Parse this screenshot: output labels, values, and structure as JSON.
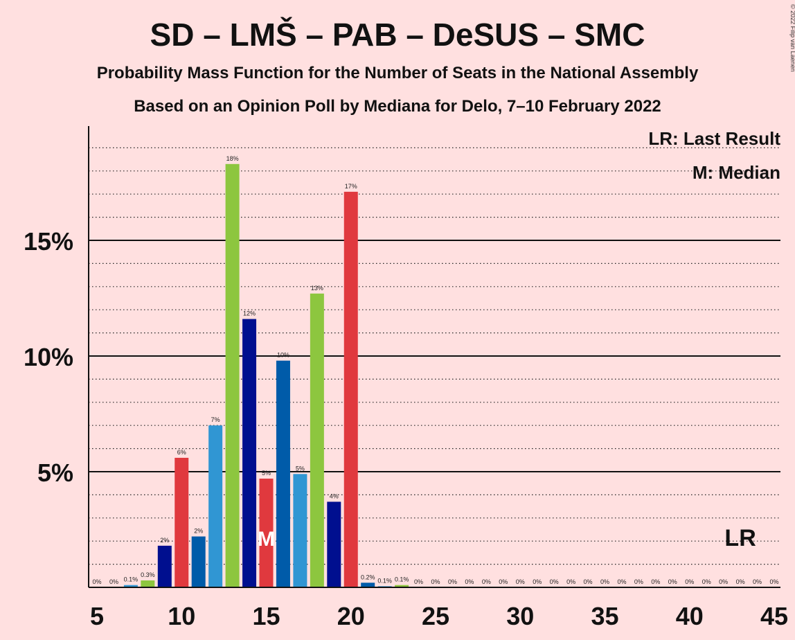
{
  "chart_data": {
    "type": "bar",
    "title": "SD – LMŠ – PAB – DeSUS – SMC",
    "subtitle": "Probability Mass Function for the Number of Seats in the National Assembly",
    "subtitle2": "Based on an Opinion Poll by Mediana for Delo, 7–10 February 2022",
    "copyright": "© 2022 Filip van Laenen",
    "legend": {
      "lr": "LR: Last Result",
      "m": "M: Median",
      "placement": "top-right"
    },
    "xlim": [
      5,
      45
    ],
    "ylim": [
      0,
      20
    ],
    "x_ticks": [
      "5",
      "10",
      "15",
      "20",
      "25",
      "30",
      "35",
      "40",
      "45"
    ],
    "y_ticks": [
      {
        "value": 5,
        "label": "5%"
      },
      {
        "value": 10,
        "label": "10%"
      },
      {
        "value": 15,
        "label": "15%"
      }
    ],
    "minor_grid_step": 1,
    "median": {
      "x": 15,
      "label": "M"
    },
    "last_result": {
      "x": 43,
      "label": "LR"
    },
    "bars": [
      {
        "x": 5,
        "value": 0,
        "label": "0%",
        "color": "#e0393e"
      },
      {
        "x": 6,
        "value": 0,
        "label": "0%",
        "color": "#005ba9"
      },
      {
        "x": 7,
        "value": 0.1,
        "label": "0.1%",
        "color": "#3096d3"
      },
      {
        "x": 8,
        "value": 0.3,
        "label": "0.3%",
        "color": "#8dc63f"
      },
      {
        "x": 9,
        "value": 1.8,
        "label": "2%",
        "color": "#000f8f"
      },
      {
        "x": 10,
        "value": 5.6,
        "label": "6%",
        "color": "#e0393e"
      },
      {
        "x": 11,
        "value": 2.2,
        "label": "2%",
        "color": "#005ba9"
      },
      {
        "x": 12,
        "value": 7.0,
        "label": "7%",
        "color": "#3096d3"
      },
      {
        "x": 13,
        "value": 18.3,
        "label": "18%",
        "color": "#8dc63f"
      },
      {
        "x": 14,
        "value": 11.6,
        "label": "12%",
        "color": "#000f8f"
      },
      {
        "x": 15,
        "value": 4.7,
        "label": "5%",
        "color": "#e0393e"
      },
      {
        "x": 16,
        "value": 9.8,
        "label": "10%",
        "color": "#005ba9"
      },
      {
        "x": 17,
        "value": 4.9,
        "label": "5%",
        "color": "#3096d3"
      },
      {
        "x": 18,
        "value": 12.7,
        "label": "13%",
        "color": "#8dc63f"
      },
      {
        "x": 19,
        "value": 3.7,
        "label": "4%",
        "color": "#000f8f"
      },
      {
        "x": 20,
        "value": 17.1,
        "label": "17%",
        "color": "#e0393e"
      },
      {
        "x": 21,
        "value": 0.2,
        "label": "0.2%",
        "color": "#005ba9"
      },
      {
        "x": 22,
        "value": 0.05,
        "label": "0.1%",
        "color": "#3096d3"
      },
      {
        "x": 23,
        "value": 0.1,
        "label": "0.1%",
        "color": "#8dc63f"
      },
      {
        "x": 24,
        "value": 0,
        "label": "0%",
        "color": "#000f8f"
      },
      {
        "x": 25,
        "value": 0,
        "label": "0%",
        "color": "#e0393e"
      },
      {
        "x": 26,
        "value": 0,
        "label": "0%",
        "color": "#005ba9"
      },
      {
        "x": 27,
        "value": 0,
        "label": "0%",
        "color": "#3096d3"
      },
      {
        "x": 28,
        "value": 0,
        "label": "0%",
        "color": "#8dc63f"
      },
      {
        "x": 29,
        "value": 0,
        "label": "0%",
        "color": "#000f8f"
      },
      {
        "x": 30,
        "value": 0,
        "label": "0%",
        "color": "#e0393e"
      },
      {
        "x": 31,
        "value": 0,
        "label": "0%",
        "color": "#005ba9"
      },
      {
        "x": 32,
        "value": 0,
        "label": "0%",
        "color": "#3096d3"
      },
      {
        "x": 33,
        "value": 0,
        "label": "0%",
        "color": "#8dc63f"
      },
      {
        "x": 34,
        "value": 0,
        "label": "0%",
        "color": "#000f8f"
      },
      {
        "x": 35,
        "value": 0,
        "label": "0%",
        "color": "#e0393e"
      },
      {
        "x": 36,
        "value": 0,
        "label": "0%",
        "color": "#005ba9"
      },
      {
        "x": 37,
        "value": 0,
        "label": "0%",
        "color": "#3096d3"
      },
      {
        "x": 38,
        "value": 0,
        "label": "0%",
        "color": "#8dc63f"
      },
      {
        "x": 39,
        "value": 0,
        "label": "0%",
        "color": "#000f8f"
      },
      {
        "x": 40,
        "value": 0,
        "label": "0%",
        "color": "#e0393e"
      },
      {
        "x": 41,
        "value": 0,
        "label": "0%",
        "color": "#005ba9"
      },
      {
        "x": 42,
        "value": 0,
        "label": "0%",
        "color": "#3096d3"
      },
      {
        "x": 43,
        "value": 0,
        "label": "0%",
        "color": "#8dc63f"
      },
      {
        "x": 44,
        "value": 0,
        "label": "0%",
        "color": "#000f8f"
      },
      {
        "x": 45,
        "value": 0,
        "label": "0%",
        "color": "#e0393e"
      }
    ]
  }
}
